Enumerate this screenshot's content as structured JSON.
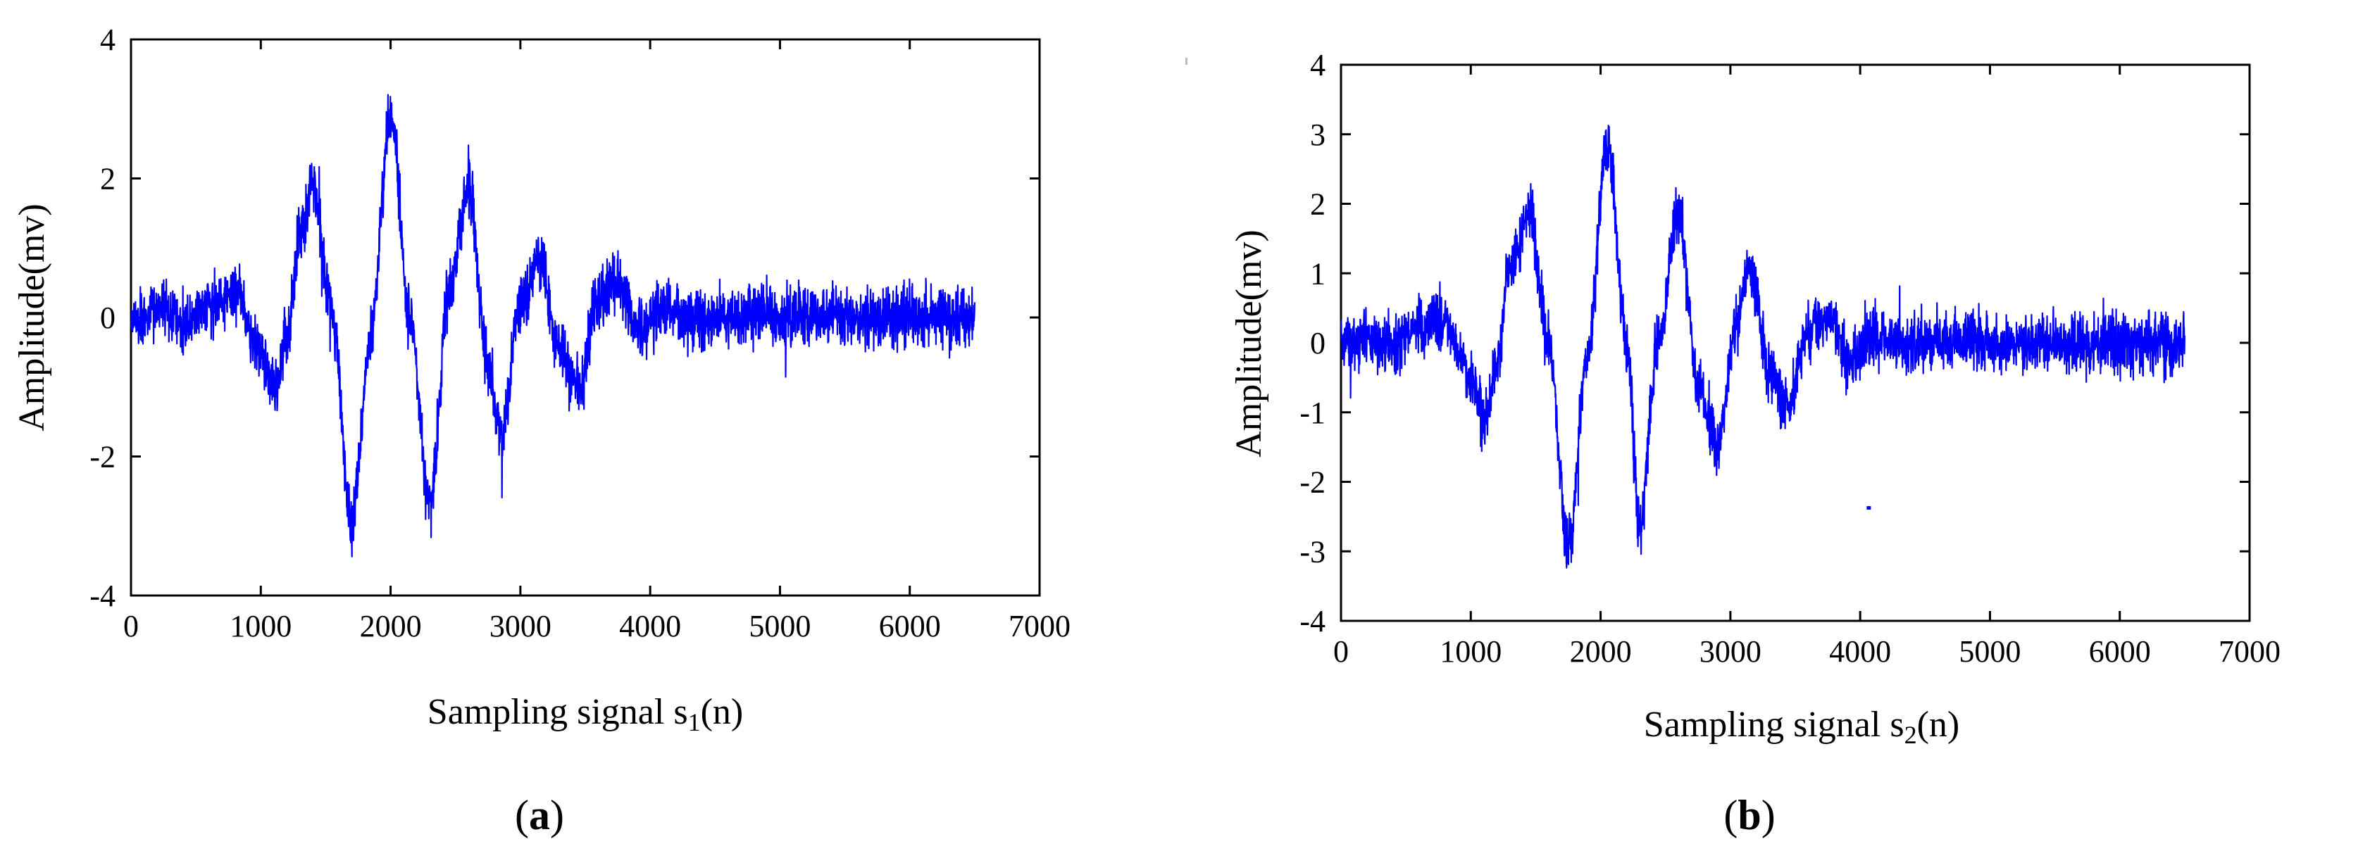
{
  "chart_data": [
    {
      "type": "line",
      "panel_label": "a",
      "title": "",
      "xlabel": "Sampling signal s",
      "xlabel_subscript": "1",
      "xlabel_suffix": "(n)",
      "ylabel": "Amplitude(mv)",
      "xlim": [
        0,
        7000
      ],
      "ylim": [
        -4,
        4
      ],
      "xticks": [
        0,
        1000,
        2000,
        3000,
        4000,
        5000,
        6000,
        7000
      ],
      "yticks": [
        -4,
        -2,
        0,
        2,
        4
      ],
      "grid": false,
      "color": "#0000ff",
      "n_samples": 6500,
      "envelope": {
        "x": [
          0,
          200,
          400,
          600,
          800,
          1000,
          1100,
          1200,
          1300,
          1400,
          1550,
          1700,
          1850,
          2000,
          2150,
          2300,
          2450,
          2600,
          2750,
          2850,
          3000,
          3150,
          3300,
          3450,
          3600,
          3750,
          3900,
          4100,
          4400,
          4800,
          5200,
          5600,
          6000,
          6500
        ],
        "y": [
          0.0,
          0.05,
          -0.05,
          0.2,
          0.3,
          -0.5,
          -1.05,
          -0.3,
          1.2,
          1.9,
          0.0,
          -2.95,
          -0.2,
          2.95,
          0.0,
          -2.7,
          0.3,
          1.9,
          -0.7,
          -1.7,
          0.2,
          0.8,
          -0.5,
          -1.05,
          0.3,
          0.5,
          -0.2,
          0.1,
          -0.05,
          0.05,
          0.0,
          0.0,
          0.0,
          0.0
        ]
      },
      "noise_amplitude": 0.33,
      "seed": 17
    },
    {
      "type": "line",
      "panel_label": "b",
      "title": "",
      "xlabel": "Sampling signal s",
      "xlabel_subscript": "2",
      "xlabel_suffix": "(n)",
      "ylabel": "Amplitude(mv)",
      "xlim": [
        0,
        7000
      ],
      "ylim": [
        -4,
        4
      ],
      "xticks": [
        0,
        1000,
        2000,
        3000,
        4000,
        5000,
        6000,
        7000
      ],
      "yticks": [
        -4,
        -3,
        -2,
        -1,
        0,
        1,
        2,
        3,
        4
      ],
      "grid": false,
      "color": "#0000ff",
      "n_samples": 6500,
      "envelope": {
        "x": [
          0,
          200,
          400,
          600,
          800,
          1000,
          1100,
          1200,
          1300,
          1450,
          1600,
          1750,
          1900,
          2050,
          2200,
          2300,
          2450,
          2600,
          2750,
          2900,
          3050,
          3150,
          3300,
          3450,
          3600,
          3750,
          3900,
          4100,
          4400,
          4800,
          5200,
          5600,
          6000,
          6500
        ],
        "y": [
          0.0,
          0.05,
          -0.05,
          0.25,
          0.3,
          -0.5,
          -1.1,
          -0.3,
          1.1,
          1.85,
          0.0,
          -2.95,
          -0.2,
          2.9,
          0.0,
          -2.65,
          0.2,
          1.85,
          -0.6,
          -1.45,
          0.3,
          1.05,
          -0.4,
          -0.9,
          0.2,
          0.4,
          -0.2,
          0.1,
          -0.05,
          0.05,
          0.0,
          0.0,
          0.0,
          0.0
        ]
      },
      "noise_amplitude": 0.33,
      "seed": 41,
      "stray_point": {
        "x": 4050,
        "y": -2.35
      }
    }
  ]
}
